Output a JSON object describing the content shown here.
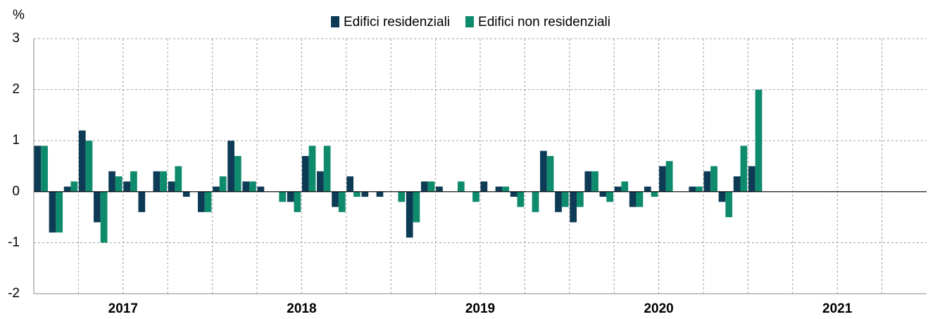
{
  "chart_data": {
    "type": "bar",
    "y_label": "%",
    "categories": [
      null,
      null,
      null,
      null,
      null,
      null,
      "2017",
      null,
      null,
      null,
      null,
      null,
      null,
      null,
      null,
      null,
      null,
      null,
      "2018",
      null,
      null,
      null,
      null,
      null,
      null,
      null,
      null,
      null,
      null,
      null,
      "2019",
      null,
      null,
      null,
      null,
      null,
      null,
      null,
      null,
      null,
      null,
      null,
      "2020",
      null,
      null,
      null,
      null,
      null,
      null,
      null,
      null,
      null,
      null,
      null,
      "2021",
      null,
      null,
      null,
      null,
      null
    ],
    "series": [
      {
        "name": "Edifici residenziali",
        "color": "#0d3b55",
        "values": [
          0.9,
          -0.8,
          0.1,
          1.2,
          -0.6,
          0.4,
          0.2,
          -0.4,
          0.4,
          0.2,
          -0.1,
          -0.4,
          0.1,
          1.0,
          0.2,
          0.1,
          0,
          -0.2,
          0.7,
          0.4,
          -0.3,
          0.3,
          -0.1,
          -0.1,
          0,
          -0.9,
          0.2,
          0.1,
          0,
          0,
          0.2,
          0.1,
          -0.1,
          0,
          0.8,
          -0.4,
          -0.6,
          0.4,
          -0.1,
          0.1,
          -0.3,
          0.1,
          0.5,
          0,
          0.1,
          0.4,
          -0.2,
          0.3,
          0.5,
          null,
          null,
          null,
          null,
          null,
          null,
          null,
          null,
          null,
          null,
          null
        ]
      },
      {
        "name": "Edifici non residenziali",
        "color": "#0e8a6d",
        "values": [
          0.9,
          -0.8,
          0.2,
          1.0,
          -1.0,
          0.3,
          0.4,
          0,
          0.4,
          0.5,
          0,
          -0.4,
          0.3,
          0.7,
          0.2,
          0,
          -0.2,
          -0.4,
          0.9,
          0.9,
          -0.4,
          -0.1,
          0,
          0,
          -0.2,
          -0.6,
          0.2,
          0,
          0.2,
          -0.2,
          0,
          0.1,
          -0.3,
          -0.4,
          0.7,
          -0.3,
          -0.3,
          0.4,
          -0.2,
          0.2,
          -0.3,
          -0.1,
          0.6,
          0,
          0.1,
          0.5,
          -0.5,
          0.9,
          2.0,
          null,
          null,
          null,
          null,
          null,
          null,
          null,
          null,
          null,
          null,
          null
        ]
      }
    ],
    "ylim": [
      -2,
      3
    ],
    "yticks": [
      -2,
      -1,
      0,
      1,
      2,
      3
    ],
    "grid": true,
    "legend": "top"
  }
}
